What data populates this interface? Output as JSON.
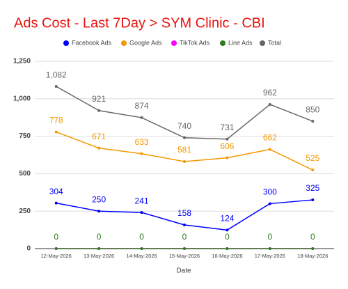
{
  "chart_data": {
    "type": "line",
    "title": "Ads Cost - Last 7Day > SYM Clinic - CBI",
    "x_label": "Date",
    "categories": [
      "12-May-2026",
      "13-May-2026",
      "14-May-2026",
      "15-May-2026",
      "16-May-2026",
      "17-May-2026",
      "18-May-2026"
    ],
    "series": [
      {
        "name": "Facebook Ads",
        "color": "#0000ff",
        "values": [
          304,
          250,
          241,
          158,
          124,
          300,
          325
        ],
        "data_labels": true
      },
      {
        "name": "Google Ads",
        "color": "#f29900",
        "values": [
          778,
          671,
          633,
          581,
          606,
          662,
          525
        ],
        "data_labels": true
      },
      {
        "name": "TikTok Ads",
        "color": "#ff00ff",
        "values": [
          0,
          0,
          0,
          0,
          0,
          0,
          0
        ],
        "data_labels": false
      },
      {
        "name": "Line Ads",
        "color": "#2e7d1e",
        "values": [
          0,
          0,
          0,
          0,
          0,
          0,
          0
        ],
        "data_labels": true
      },
      {
        "name": "Total",
        "color": "#666666",
        "values": [
          1082,
          921,
          874,
          740,
          731,
          962,
          850
        ],
        "value_labels": [
          "1,082",
          "921",
          "874",
          "740",
          "731",
          "962",
          "850"
        ],
        "data_labels": true
      }
    ],
    "ylim": [
      0,
      1250
    ],
    "yticks": [
      0,
      250,
      500,
      {
        "value": 750,
        "label": "750"
      },
      {
        "value": 1000,
        "label": "1,000"
      },
      {
        "value": 1250,
        "label": "1,250"
      }
    ],
    "grid": true,
    "legend": "top"
  }
}
